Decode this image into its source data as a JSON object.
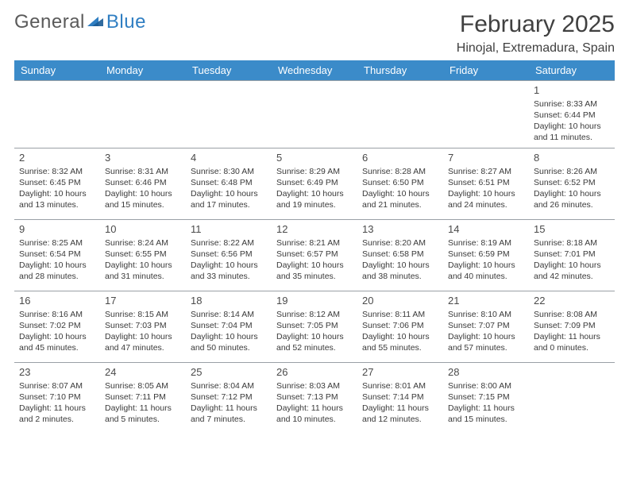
{
  "logo": {
    "part1": "General",
    "part2": "Blue"
  },
  "header": {
    "title": "February 2025",
    "subtitle": "Hinojal, Extremadura, Spain"
  },
  "colors": {
    "header_bg": "#3b8bc9",
    "header_text": "#ffffff",
    "border": "#9aa0a6",
    "text": "#3a3a3a",
    "logo_gray": "#5a5a5a",
    "logo_blue": "#2f7ec2"
  },
  "days": [
    "Sunday",
    "Monday",
    "Tuesday",
    "Wednesday",
    "Thursday",
    "Friday",
    "Saturday"
  ],
  "weeks": [
    [
      null,
      null,
      null,
      null,
      null,
      null,
      {
        "n": "1",
        "sunrise": "8:33 AM",
        "sunset": "6:44 PM",
        "daylight": "10 hours and 11 minutes."
      }
    ],
    [
      {
        "n": "2",
        "sunrise": "8:32 AM",
        "sunset": "6:45 PM",
        "daylight": "10 hours and 13 minutes."
      },
      {
        "n": "3",
        "sunrise": "8:31 AM",
        "sunset": "6:46 PM",
        "daylight": "10 hours and 15 minutes."
      },
      {
        "n": "4",
        "sunrise": "8:30 AM",
        "sunset": "6:48 PM",
        "daylight": "10 hours and 17 minutes."
      },
      {
        "n": "5",
        "sunrise": "8:29 AM",
        "sunset": "6:49 PM",
        "daylight": "10 hours and 19 minutes."
      },
      {
        "n": "6",
        "sunrise": "8:28 AM",
        "sunset": "6:50 PM",
        "daylight": "10 hours and 21 minutes."
      },
      {
        "n": "7",
        "sunrise": "8:27 AM",
        "sunset": "6:51 PM",
        "daylight": "10 hours and 24 minutes."
      },
      {
        "n": "8",
        "sunrise": "8:26 AM",
        "sunset": "6:52 PM",
        "daylight": "10 hours and 26 minutes."
      }
    ],
    [
      {
        "n": "9",
        "sunrise": "8:25 AM",
        "sunset": "6:54 PM",
        "daylight": "10 hours and 28 minutes."
      },
      {
        "n": "10",
        "sunrise": "8:24 AM",
        "sunset": "6:55 PM",
        "daylight": "10 hours and 31 minutes."
      },
      {
        "n": "11",
        "sunrise": "8:22 AM",
        "sunset": "6:56 PM",
        "daylight": "10 hours and 33 minutes."
      },
      {
        "n": "12",
        "sunrise": "8:21 AM",
        "sunset": "6:57 PM",
        "daylight": "10 hours and 35 minutes."
      },
      {
        "n": "13",
        "sunrise": "8:20 AM",
        "sunset": "6:58 PM",
        "daylight": "10 hours and 38 minutes."
      },
      {
        "n": "14",
        "sunrise": "8:19 AM",
        "sunset": "6:59 PM",
        "daylight": "10 hours and 40 minutes."
      },
      {
        "n": "15",
        "sunrise": "8:18 AM",
        "sunset": "7:01 PM",
        "daylight": "10 hours and 42 minutes."
      }
    ],
    [
      {
        "n": "16",
        "sunrise": "8:16 AM",
        "sunset": "7:02 PM",
        "daylight": "10 hours and 45 minutes."
      },
      {
        "n": "17",
        "sunrise": "8:15 AM",
        "sunset": "7:03 PM",
        "daylight": "10 hours and 47 minutes."
      },
      {
        "n": "18",
        "sunrise": "8:14 AM",
        "sunset": "7:04 PM",
        "daylight": "10 hours and 50 minutes."
      },
      {
        "n": "19",
        "sunrise": "8:12 AM",
        "sunset": "7:05 PM",
        "daylight": "10 hours and 52 minutes."
      },
      {
        "n": "20",
        "sunrise": "8:11 AM",
        "sunset": "7:06 PM",
        "daylight": "10 hours and 55 minutes."
      },
      {
        "n": "21",
        "sunrise": "8:10 AM",
        "sunset": "7:07 PM",
        "daylight": "10 hours and 57 minutes."
      },
      {
        "n": "22",
        "sunrise": "8:08 AM",
        "sunset": "7:09 PM",
        "daylight": "11 hours and 0 minutes."
      }
    ],
    [
      {
        "n": "23",
        "sunrise": "8:07 AM",
        "sunset": "7:10 PM",
        "daylight": "11 hours and 2 minutes."
      },
      {
        "n": "24",
        "sunrise": "8:05 AM",
        "sunset": "7:11 PM",
        "daylight": "11 hours and 5 minutes."
      },
      {
        "n": "25",
        "sunrise": "8:04 AM",
        "sunset": "7:12 PM",
        "daylight": "11 hours and 7 minutes."
      },
      {
        "n": "26",
        "sunrise": "8:03 AM",
        "sunset": "7:13 PM",
        "daylight": "11 hours and 10 minutes."
      },
      {
        "n": "27",
        "sunrise": "8:01 AM",
        "sunset": "7:14 PM",
        "daylight": "11 hours and 12 minutes."
      },
      {
        "n": "28",
        "sunrise": "8:00 AM",
        "sunset": "7:15 PM",
        "daylight": "11 hours and 15 minutes."
      },
      null
    ]
  ],
  "labels": {
    "sunrise": "Sunrise: ",
    "sunset": "Sunset: ",
    "daylight": "Daylight: "
  }
}
